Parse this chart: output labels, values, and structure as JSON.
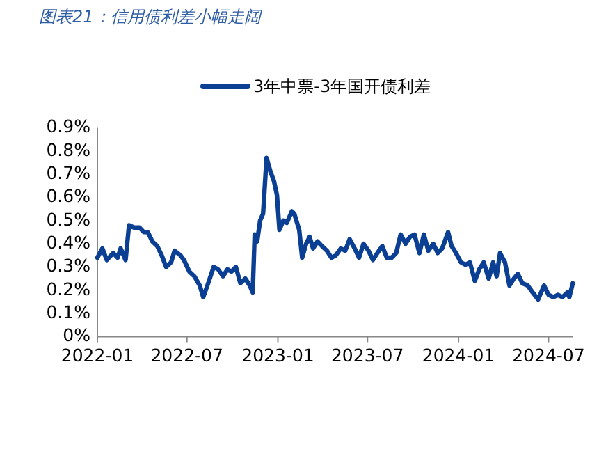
{
  "chart_data": {
    "type": "line",
    "title": "图表21：信用债利差小幅走阔",
    "legend": "top",
    "grid": false,
    "marker": "none",
    "line_style": "solid",
    "xlim": [
      "2022-01-01",
      "2024-08-20"
    ],
    "xticks": [
      "2022-01",
      "2022-07",
      "2023-01",
      "2023-07",
      "2024-01",
      "2024-07"
    ],
    "ylim": [
      0,
      0.9
    ],
    "yticks": [
      {
        "value": 0,
        "label": "0%"
      },
      {
        "value": 0.1,
        "label": "0.1%"
      },
      {
        "value": 0.2,
        "label": "0.2%"
      },
      {
        "value": 0.3,
        "label": "0.3%"
      },
      {
        "value": 0.4,
        "label": "0.4%"
      },
      {
        "value": 0.5,
        "label": "0.5%"
      },
      {
        "value": 0.6,
        "label": "0.6%"
      },
      {
        "value": 0.7,
        "label": "0.7%"
      },
      {
        "value": 0.8,
        "label": "0.8%"
      },
      {
        "value": 0.9,
        "label": "0.9%"
      }
    ],
    "series": [
      {
        "name": "3年中票-3年国开债利差",
        "color": "#0a3f94",
        "x": [
          "2022-01-01",
          "2022-01-11",
          "2022-01-20",
          "2022-02-02",
          "2022-02-11",
          "2022-02-17",
          "2022-02-27",
          "2022-03-06",
          "2022-03-16",
          "2022-03-27",
          "2022-04-05",
          "2022-04-13",
          "2022-04-22",
          "2022-05-02",
          "2022-05-11",
          "2022-05-20",
          "2022-05-30",
          "2022-06-06",
          "2022-06-18",
          "2022-06-25",
          "2022-07-06",
          "2022-07-16",
          "2022-07-27",
          "2022-08-03",
          "2022-08-13",
          "2022-08-24",
          "2022-09-02",
          "2022-09-12",
          "2022-09-21",
          "2022-09-29",
          "2022-10-08",
          "2022-10-17",
          "2022-10-27",
          "2022-11-05",
          "2022-11-11",
          "2022-11-15",
          "2022-11-20",
          "2022-11-26",
          "2022-12-02",
          "2022-12-09",
          "2022-12-17",
          "2022-12-24",
          "2022-12-30",
          "2023-01-04",
          "2023-01-12",
          "2023-01-19",
          "2023-01-29",
          "2023-02-03",
          "2023-02-13",
          "2023-02-19",
          "2023-02-27",
          "2023-03-06",
          "2023-03-13",
          "2023-03-22",
          "2023-03-31",
          "2023-04-10",
          "2023-04-19",
          "2023-04-28",
          "2023-05-08",
          "2023-05-17",
          "2023-05-26",
          "2023-06-05",
          "2023-06-14",
          "2023-06-23",
          "2023-07-03",
          "2023-07-12",
          "2023-07-21",
          "2023-07-31",
          "2023-08-09",
          "2023-08-19",
          "2023-08-28",
          "2023-09-06",
          "2023-09-16",
          "2023-09-25",
          "2023-10-04",
          "2023-10-14",
          "2023-10-23",
          "2023-11-01",
          "2023-11-11",
          "2023-11-20",
          "2023-11-29",
          "2023-12-11",
          "2023-12-18",
          "2023-12-27",
          "2024-01-06",
          "2024-01-15",
          "2024-01-24",
          "2024-02-03",
          "2024-02-12",
          "2024-02-21",
          "2024-03-02",
          "2024-03-11",
          "2024-03-18",
          "2024-03-25",
          "2024-04-04",
          "2024-04-13",
          "2024-04-22",
          "2024-04-30",
          "2024-05-09",
          "2024-05-20",
          "2024-05-30",
          "2024-06-10",
          "2024-06-22",
          "2024-07-01",
          "2024-07-11",
          "2024-07-20",
          "2024-07-29",
          "2024-08-08",
          "2024-08-12",
          "2024-08-19"
        ],
        "values": [
          0.34,
          0.38,
          0.33,
          0.36,
          0.34,
          0.38,
          0.33,
          0.48,
          0.47,
          0.47,
          0.45,
          0.45,
          0.41,
          0.39,
          0.35,
          0.3,
          0.32,
          0.37,
          0.35,
          0.33,
          0.28,
          0.26,
          0.22,
          0.17,
          0.23,
          0.3,
          0.29,
          0.26,
          0.29,
          0.28,
          0.3,
          0.23,
          0.25,
          0.22,
          0.19,
          0.44,
          0.41,
          0.5,
          0.53,
          0.77,
          0.71,
          0.67,
          0.61,
          0.46,
          0.5,
          0.49,
          0.54,
          0.53,
          0.46,
          0.34,
          0.4,
          0.43,
          0.38,
          0.41,
          0.39,
          0.37,
          0.34,
          0.35,
          0.38,
          0.37,
          0.42,
          0.38,
          0.34,
          0.4,
          0.37,
          0.33,
          0.36,
          0.39,
          0.34,
          0.34,
          0.36,
          0.44,
          0.4,
          0.43,
          0.44,
          0.36,
          0.44,
          0.37,
          0.4,
          0.36,
          0.38,
          0.45,
          0.39,
          0.36,
          0.32,
          0.31,
          0.32,
          0.24,
          0.29,
          0.32,
          0.25,
          0.32,
          0.26,
          0.36,
          0.32,
          0.22,
          0.25,
          0.27,
          0.23,
          0.22,
          0.19,
          0.16,
          0.22,
          0.18,
          0.17,
          0.18,
          0.17,
          0.19,
          0.17,
          0.23
        ]
      }
    ]
  }
}
